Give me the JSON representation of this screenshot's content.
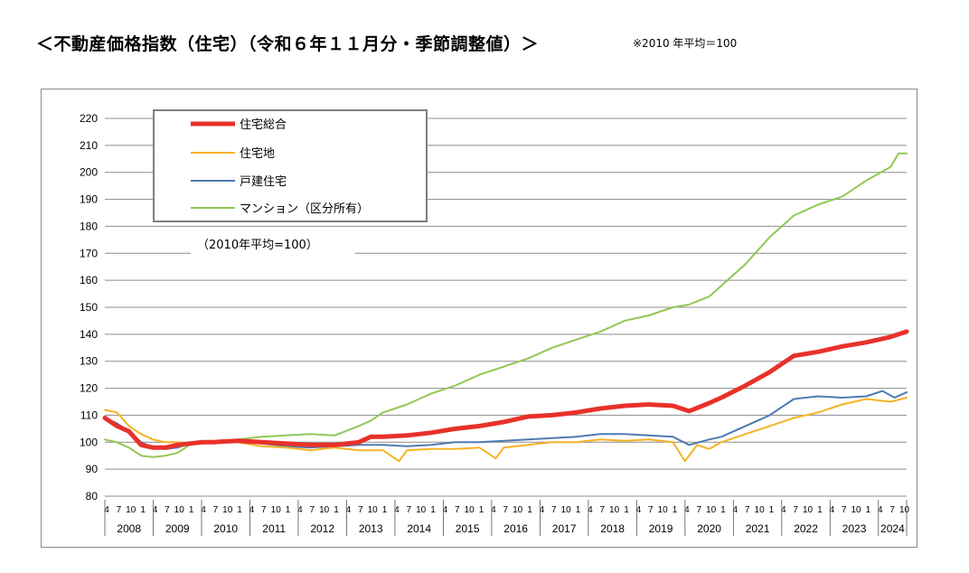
{
  "header": {
    "title": "＜不動産価格指数（住宅）（令和６年１１月分・季節調整値）＞",
    "note": "※2010 年平均＝100"
  },
  "colors": {
    "total": "#e8312a",
    "land": "#f5b324",
    "house": "#4f7ab3",
    "condo": "#92c755",
    "grid": "#8c8c8c"
  },
  "chart_data": {
    "type": "line",
    "annotation": "（2010年平均=100）",
    "ylim": [
      80,
      220
    ],
    "yticks": [
      80,
      90,
      100,
      110,
      120,
      130,
      140,
      150,
      160,
      170,
      180,
      190,
      200,
      210,
      220
    ],
    "grid": true,
    "legend_position": "top-left",
    "years": [
      "2008",
      "2009",
      "2010",
      "2011",
      "2012",
      "2013",
      "2014",
      "2015",
      "2016",
      "2017",
      "2018",
      "2019",
      "2020",
      "2021",
      "2022",
      "2023",
      "2024"
    ],
    "month_ticks": [
      "4",
      "7",
      "10",
      "1"
    ],
    "x_start": "2008-04",
    "x_end": "2024-11",
    "series": [
      {
        "name": "住宅総合",
        "color_key": "total",
        "points": [
          [
            "2008-04",
            109
          ],
          [
            "2008-07",
            106
          ],
          [
            "2008-10",
            104
          ],
          [
            "2009-01",
            99
          ],
          [
            "2009-04",
            98
          ],
          [
            "2009-07",
            98
          ],
          [
            "2009-10",
            99
          ],
          [
            "2010-01",
            99.5
          ],
          [
            "2010-04",
            100
          ],
          [
            "2010-07",
            100
          ],
          [
            "2010-10",
            100.3
          ],
          [
            "2011-01",
            100.5
          ],
          [
            "2011-07",
            100
          ],
          [
            "2012-01",
            99.5
          ],
          [
            "2012-07",
            99
          ],
          [
            "2013-01",
            99
          ],
          [
            "2013-07",
            100
          ],
          [
            "2013-10",
            102
          ],
          [
            "2014-01",
            102
          ],
          [
            "2014-07",
            102.5
          ],
          [
            "2015-01",
            103.5
          ],
          [
            "2015-07",
            105
          ],
          [
            "2016-01",
            106
          ],
          [
            "2016-07",
            107.5
          ],
          [
            "2017-01",
            109.5
          ],
          [
            "2017-07",
            110
          ],
          [
            "2018-01",
            111
          ],
          [
            "2018-07",
            112.5
          ],
          [
            "2019-01",
            113.5
          ],
          [
            "2019-07",
            114
          ],
          [
            "2020-01",
            113.5
          ],
          [
            "2020-05",
            111.5
          ],
          [
            "2020-10",
            114.5
          ],
          [
            "2021-01",
            116.5
          ],
          [
            "2021-07",
            121
          ],
          [
            "2022-01",
            126
          ],
          [
            "2022-07",
            132
          ],
          [
            "2023-01",
            133.5
          ],
          [
            "2023-07",
            135.5
          ],
          [
            "2024-01",
            137
          ],
          [
            "2024-07",
            139
          ],
          [
            "2024-11",
            141
          ]
        ]
      },
      {
        "name": "住宅地",
        "color_key": "land",
        "points": [
          [
            "2008-04",
            112
          ],
          [
            "2008-07",
            111
          ],
          [
            "2008-10",
            106
          ],
          [
            "2009-01",
            103
          ],
          [
            "2009-04",
            101
          ],
          [
            "2009-07",
            100
          ],
          [
            "2009-10",
            100
          ],
          [
            "2010-01",
            99.5
          ],
          [
            "2010-07",
            100
          ],
          [
            "2011-01",
            100
          ],
          [
            "2011-07",
            98.5
          ],
          [
            "2012-01",
            98
          ],
          [
            "2012-07",
            97
          ],
          [
            "2013-01",
            98
          ],
          [
            "2013-07",
            97
          ],
          [
            "2014-01",
            97
          ],
          [
            "2014-05",
            93
          ],
          [
            "2014-07",
            97
          ],
          [
            "2015-01",
            97.5
          ],
          [
            "2015-07",
            97.5
          ],
          [
            "2016-01",
            98
          ],
          [
            "2016-05",
            94
          ],
          [
            "2016-07",
            98
          ],
          [
            "2017-01",
            99
          ],
          [
            "2017-07",
            100
          ],
          [
            "2018-01",
            100
          ],
          [
            "2018-07",
            101
          ],
          [
            "2019-01",
            100.5
          ],
          [
            "2019-07",
            101
          ],
          [
            "2020-01",
            100
          ],
          [
            "2020-04",
            93
          ],
          [
            "2020-07",
            99
          ],
          [
            "2020-10",
            97.5
          ],
          [
            "2021-01",
            100
          ],
          [
            "2021-07",
            103
          ],
          [
            "2022-01",
            106
          ],
          [
            "2022-07",
            109
          ],
          [
            "2023-01",
            111
          ],
          [
            "2023-07",
            114
          ],
          [
            "2024-01",
            116
          ],
          [
            "2024-07",
            115
          ],
          [
            "2024-11",
            116.5
          ]
        ]
      },
      {
        "name": "戸建住宅",
        "color_key": "house",
        "points": [
          [
            "2008-04",
            109
          ],
          [
            "2008-07",
            107
          ],
          [
            "2008-10",
            104
          ],
          [
            "2009-01",
            100
          ],
          [
            "2009-04",
            98
          ],
          [
            "2009-07",
            97.5
          ],
          [
            "2009-10",
            98
          ],
          [
            "2010-01",
            99.5
          ],
          [
            "2010-07",
            100
          ],
          [
            "2011-01",
            100.5
          ],
          [
            "2011-07",
            99.5
          ],
          [
            "2012-01",
            98.5
          ],
          [
            "2012-07",
            98
          ],
          [
            "2013-01",
            98.5
          ],
          [
            "2013-07",
            99
          ],
          [
            "2014-01",
            99
          ],
          [
            "2014-07",
            98.5
          ],
          [
            "2015-01",
            99
          ],
          [
            "2015-07",
            100
          ],
          [
            "2016-01",
            100
          ],
          [
            "2016-07",
            100.5
          ],
          [
            "2017-01",
            101
          ],
          [
            "2017-07",
            101.5
          ],
          [
            "2018-01",
            102
          ],
          [
            "2018-07",
            103
          ],
          [
            "2019-01",
            103
          ],
          [
            "2019-07",
            102.5
          ],
          [
            "2020-01",
            102
          ],
          [
            "2020-05",
            99
          ],
          [
            "2020-10",
            101
          ],
          [
            "2021-01",
            102
          ],
          [
            "2021-07",
            106
          ],
          [
            "2022-01",
            110
          ],
          [
            "2022-07",
            116
          ],
          [
            "2023-01",
            117
          ],
          [
            "2023-07",
            116.5
          ],
          [
            "2024-01",
            117
          ],
          [
            "2024-05",
            119
          ],
          [
            "2024-08",
            116.5
          ],
          [
            "2024-11",
            118.5
          ]
        ]
      },
      {
        "name": "マンション（区分所有）",
        "color_key": "condo",
        "points": [
          [
            "2008-04",
            101
          ],
          [
            "2008-07",
            100
          ],
          [
            "2008-10",
            98
          ],
          [
            "2009-01",
            95
          ],
          [
            "2009-04",
            94.5
          ],
          [
            "2009-07",
            95
          ],
          [
            "2009-10",
            96
          ],
          [
            "2010-01",
            99
          ],
          [
            "2010-07",
            100
          ],
          [
            "2011-01",
            101
          ],
          [
            "2011-07",
            102
          ],
          [
            "2012-01",
            102.5
          ],
          [
            "2012-07",
            103
          ],
          [
            "2013-01",
            102.5
          ],
          [
            "2013-07",
            106
          ],
          [
            "2013-10",
            108
          ],
          [
            "2014-01",
            111
          ],
          [
            "2014-07",
            114
          ],
          [
            "2015-01",
            118
          ],
          [
            "2015-07",
            121
          ],
          [
            "2016-01",
            125
          ],
          [
            "2016-07",
            128
          ],
          [
            "2017-01",
            131
          ],
          [
            "2017-07",
            135
          ],
          [
            "2018-01",
            138
          ],
          [
            "2018-07",
            141
          ],
          [
            "2019-01",
            145
          ],
          [
            "2019-07",
            147
          ],
          [
            "2020-01",
            150
          ],
          [
            "2020-05",
            151
          ],
          [
            "2020-10",
            154
          ],
          [
            "2021-01",
            158
          ],
          [
            "2021-07",
            166
          ],
          [
            "2022-01",
            176
          ],
          [
            "2022-07",
            184
          ],
          [
            "2023-01",
            188
          ],
          [
            "2023-07",
            191
          ],
          [
            "2024-01",
            197
          ],
          [
            "2024-07",
            202
          ],
          [
            "2024-09",
            207
          ],
          [
            "2024-11",
            207
          ]
        ]
      }
    ]
  }
}
